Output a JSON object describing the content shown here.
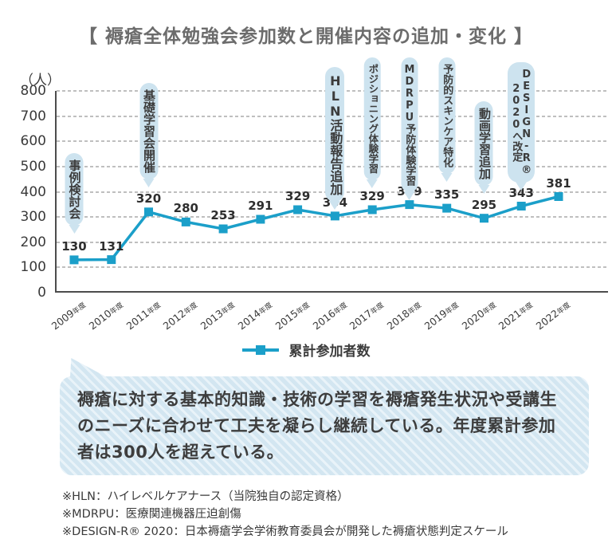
{
  "title": "【 褥瘡全体勉強会参加数と開催内容の追加・変化 】",
  "chart_data": {
    "type": "line",
    "unit_label": "（人）",
    "categories": [
      "2009年度",
      "2010年度",
      "2011年度",
      "2012年度",
      "2013年度",
      "2014年度",
      "2015年度",
      "2016年度",
      "2017年度",
      "2018年度",
      "2019年度",
      "2020年度",
      "2021年度",
      "2022年度"
    ],
    "series": [
      {
        "name": "累計参加者数",
        "values": [
          130,
          131,
          320,
          280,
          253,
          291,
          329,
          304,
          329,
          349,
          335,
          295,
          343,
          381
        ],
        "color": "#1b9fc9",
        "marker": "square"
      }
    ],
    "ylim": [
      0,
      800
    ],
    "ytick_step": 100,
    "grid": "horizontal-dashed",
    "legend_position": "bottom",
    "annotations": [
      {
        "category": "2009年度",
        "index": 0,
        "label": "事例検討会"
      },
      {
        "category": "2011年度",
        "index": 2,
        "label": "基礎学習会開催"
      },
      {
        "category": "2016年度",
        "index": 7,
        "label": "HLN活動報告追加"
      },
      {
        "category": "2017年度",
        "index": 8,
        "label": "ポジショニング体験学習"
      },
      {
        "category": "2018年度",
        "index": 9,
        "label": "MDRPU予防体験学習"
      },
      {
        "category": "2019年度",
        "index": 10,
        "label": "予防的スキンケア特化"
      },
      {
        "category": "2020年度",
        "index": 11,
        "label": "動画学習追加"
      },
      {
        "category": "2021年度",
        "index": 12,
        "label": "DESIGN-R®2020へ改定",
        "lines": [
          "DESIGN-R®",
          "2020へ改定"
        ]
      }
    ]
  },
  "legend": {
    "label": "累計参加者数"
  },
  "callout": {
    "text": "褥瘡に対する基本的知識・技術の学習を褥瘡発生状況や受講生のニーズに合わせて工夫を凝らし継続している。年度累計参加者は300人を超えている。"
  },
  "footnotes": [
    "※HLN：ハイレベルケアナース（当院独自の認定資格）",
    "※MDRPU：医療関連機器圧迫創傷",
    "※DESIGN-R® 2020：日本褥瘡学会学術教育委員会が開発した褥瘡状態判定スケール"
  ],
  "colors": {
    "line": "#1b9fc9",
    "annotation_bubble": "#cde3ef",
    "callout_background": "#d3e6f1",
    "title_text": "#6c6c6c",
    "body_text": "#3c3c3c"
  }
}
